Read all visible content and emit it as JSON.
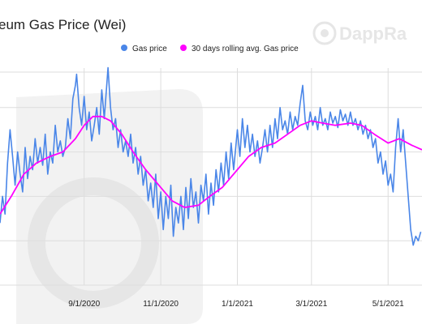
{
  "colors": {
    "gas_price": "#4a86e8",
    "rolling_avg": "#ff00ff",
    "grid": "#dddddd",
    "watermark": "#eeeeee"
  },
  "watermark": {
    "text": "DappRa",
    "icon": "dappradar-logo-icon"
  },
  "chart_data": {
    "type": "line",
    "title": "eum Gas Price (Wei)",
    "legend": {
      "placement": "top-center"
    },
    "grid": true,
    "x_tick_labels": [
      "9/1/2020",
      "11/1/2020",
      "1/1/2021",
      "3/1/2021",
      "5/1/2021"
    ],
    "x_tick_dates": [
      "2020-09-01",
      "2020-11-01",
      "2021-01-01",
      "2021-03-01",
      "2021-05-01"
    ],
    "xlim": [
      "2020-06-26",
      "2021-05-28"
    ],
    "ylim": [
      0,
      100
    ],
    "series": [
      {
        "name": "Gas price",
        "color": "#4a86e8",
        "points": [
          [
            "2020-06-26",
            28
          ],
          [
            "2020-06-28",
            40
          ],
          [
            "2020-06-30",
            32
          ],
          [
            "2020-07-02",
            55
          ],
          [
            "2020-07-04",
            70
          ],
          [
            "2020-07-06",
            58
          ],
          [
            "2020-07-08",
            45
          ],
          [
            "2020-07-10",
            60
          ],
          [
            "2020-07-12",
            50
          ],
          [
            "2020-07-14",
            42
          ],
          [
            "2020-07-16",
            62
          ],
          [
            "2020-07-18",
            48
          ],
          [
            "2020-07-20",
            58
          ],
          [
            "2020-07-22",
            52
          ],
          [
            "2020-07-24",
            66
          ],
          [
            "2020-07-26",
            55
          ],
          [
            "2020-07-28",
            62
          ],
          [
            "2020-07-30",
            54
          ],
          [
            "2020-08-01",
            68
          ],
          [
            "2020-08-03",
            50
          ],
          [
            "2020-08-05",
            60
          ],
          [
            "2020-08-07",
            55
          ],
          [
            "2020-08-09",
            72
          ],
          [
            "2020-08-11",
            60
          ],
          [
            "2020-08-13",
            65
          ],
          [
            "2020-08-15",
            58
          ],
          [
            "2020-08-17",
            62
          ],
          [
            "2020-08-19",
            75
          ],
          [
            "2020-08-21",
            66
          ],
          [
            "2020-08-23",
            84
          ],
          [
            "2020-08-25",
            90
          ],
          [
            "2020-08-26",
            95
          ],
          [
            "2020-08-28",
            80
          ],
          [
            "2020-08-30",
            72
          ],
          [
            "2020-09-01",
            85
          ],
          [
            "2020-09-03",
            70
          ],
          [
            "2020-09-05",
            78
          ],
          [
            "2020-09-07",
            65
          ],
          [
            "2020-09-09",
            72
          ],
          [
            "2020-09-11",
            80
          ],
          [
            "2020-09-13",
            68
          ],
          [
            "2020-09-15",
            88
          ],
          [
            "2020-09-17",
            75
          ],
          [
            "2020-09-19",
            90
          ],
          [
            "2020-09-20",
            98
          ],
          [
            "2020-09-22",
            80
          ],
          [
            "2020-09-24",
            70
          ],
          [
            "2020-09-26",
            75
          ],
          [
            "2020-09-28",
            62
          ],
          [
            "2020-09-30",
            70
          ],
          [
            "2020-10-02",
            60
          ],
          [
            "2020-10-04",
            65
          ],
          [
            "2020-10-06",
            58
          ],
          [
            "2020-10-08",
            68
          ],
          [
            "2020-10-10",
            55
          ],
          [
            "2020-10-12",
            62
          ],
          [
            "2020-10-14",
            50
          ],
          [
            "2020-10-16",
            58
          ],
          [
            "2020-10-18",
            45
          ],
          [
            "2020-10-20",
            52
          ],
          [
            "2020-10-22",
            38
          ],
          [
            "2020-10-24",
            46
          ],
          [
            "2020-10-26",
            35
          ],
          [
            "2020-10-28",
            50
          ],
          [
            "2020-10-30",
            30
          ],
          [
            "2020-11-01",
            42
          ],
          [
            "2020-11-03",
            25
          ],
          [
            "2020-11-05",
            40
          ],
          [
            "2020-11-07",
            30
          ],
          [
            "2020-11-09",
            45
          ],
          [
            "2020-11-11",
            22
          ],
          [
            "2020-11-13",
            35
          ],
          [
            "2020-11-15",
            28
          ],
          [
            "2020-11-17",
            40
          ],
          [
            "2020-11-19",
            25
          ],
          [
            "2020-11-21",
            44
          ],
          [
            "2020-11-23",
            30
          ],
          [
            "2020-11-25",
            48
          ],
          [
            "2020-11-27",
            35
          ],
          [
            "2020-11-29",
            42
          ],
          [
            "2020-12-01",
            28
          ],
          [
            "2020-12-03",
            45
          ],
          [
            "2020-12-05",
            38
          ],
          [
            "2020-12-07",
            50
          ],
          [
            "2020-12-09",
            32
          ],
          [
            "2020-12-11",
            46
          ],
          [
            "2020-12-13",
            36
          ],
          [
            "2020-12-15",
            52
          ],
          [
            "2020-12-17",
            42
          ],
          [
            "2020-12-19",
            55
          ],
          [
            "2020-12-21",
            45
          ],
          [
            "2020-12-23",
            60
          ],
          [
            "2020-12-25",
            48
          ],
          [
            "2020-12-27",
            64
          ],
          [
            "2020-12-29",
            52
          ],
          [
            "2021-01-01",
            70
          ],
          [
            "2021-01-03",
            58
          ],
          [
            "2021-01-05",
            75
          ],
          [
            "2021-01-07",
            62
          ],
          [
            "2021-01-09",
            72
          ],
          [
            "2021-01-11",
            60
          ],
          [
            "2021-01-13",
            68
          ],
          [
            "2021-01-15",
            58
          ],
          [
            "2021-01-17",
            65
          ],
          [
            "2021-01-19",
            55
          ],
          [
            "2021-01-21",
            62
          ],
          [
            "2021-01-23",
            70
          ],
          [
            "2021-01-25",
            60
          ],
          [
            "2021-01-27",
            72
          ],
          [
            "2021-01-29",
            62
          ],
          [
            "2021-01-31",
            75
          ],
          [
            "2021-02-02",
            66
          ],
          [
            "2021-02-04",
            80
          ],
          [
            "2021-02-06",
            70
          ],
          [
            "2021-02-08",
            74
          ],
          [
            "2021-02-10",
            68
          ],
          [
            "2021-02-12",
            78
          ],
          [
            "2021-02-14",
            70
          ],
          [
            "2021-02-16",
            76
          ],
          [
            "2021-02-18",
            72
          ],
          [
            "2021-02-20",
            82
          ],
          [
            "2021-02-22",
            90
          ],
          [
            "2021-02-24",
            74
          ],
          [
            "2021-02-26",
            70
          ],
          [
            "2021-02-28",
            78
          ],
          [
            "2021-03-02",
            72
          ],
          [
            "2021-03-04",
            76
          ],
          [
            "2021-03-06",
            70
          ],
          [
            "2021-03-08",
            80
          ],
          [
            "2021-03-10",
            72
          ],
          [
            "2021-03-12",
            75
          ],
          [
            "2021-03-14",
            70
          ],
          [
            "2021-03-16",
            78
          ],
          [
            "2021-03-18",
            73
          ],
          [
            "2021-03-20",
            76
          ],
          [
            "2021-03-22",
            71
          ],
          [
            "2021-03-24",
            79
          ],
          [
            "2021-03-26",
            74
          ],
          [
            "2021-03-28",
            77
          ],
          [
            "2021-03-30",
            72
          ],
          [
            "2021-04-01",
            78
          ],
          [
            "2021-04-03",
            72
          ],
          [
            "2021-04-05",
            75
          ],
          [
            "2021-04-07",
            70
          ],
          [
            "2021-04-09",
            74
          ],
          [
            "2021-04-11",
            68
          ],
          [
            "2021-04-13",
            72
          ],
          [
            "2021-04-15",
            66
          ],
          [
            "2021-04-17",
            70
          ],
          [
            "2021-04-19",
            62
          ],
          [
            "2021-04-21",
            66
          ],
          [
            "2021-04-23",
            55
          ],
          [
            "2021-04-25",
            60
          ],
          [
            "2021-04-27",
            50
          ],
          [
            "2021-04-29",
            56
          ],
          [
            "2021-05-01",
            45
          ],
          [
            "2021-05-03",
            50
          ],
          [
            "2021-05-05",
            42
          ],
          [
            "2021-05-07",
            62
          ],
          [
            "2021-05-09",
            75
          ],
          [
            "2021-05-11",
            60
          ],
          [
            "2021-05-13",
            70
          ],
          [
            "2021-05-15",
            55
          ],
          [
            "2021-05-17",
            40
          ],
          [
            "2021-05-19",
            25
          ],
          [
            "2021-05-21",
            18
          ],
          [
            "2021-05-23",
            22
          ],
          [
            "2021-05-25",
            20
          ],
          [
            "2021-05-27",
            24
          ]
        ]
      },
      {
        "name": "30 days rolling avg. Gas price",
        "color": "#ff00ff",
        "points": [
          [
            "2020-06-26",
            32
          ],
          [
            "2020-07-05",
            40
          ],
          [
            "2020-07-15",
            50
          ],
          [
            "2020-07-25",
            55
          ],
          [
            "2020-08-05",
            58
          ],
          [
            "2020-08-15",
            60
          ],
          [
            "2020-08-25",
            66
          ],
          [
            "2020-09-01",
            72
          ],
          [
            "2020-09-08",
            76
          ],
          [
            "2020-09-15",
            76
          ],
          [
            "2020-09-22",
            74
          ],
          [
            "2020-10-01",
            68
          ],
          [
            "2020-10-10",
            60
          ],
          [
            "2020-10-20",
            52
          ],
          [
            "2020-11-01",
            44
          ],
          [
            "2020-11-10",
            38
          ],
          [
            "2020-11-20",
            35
          ],
          [
            "2020-12-01",
            36
          ],
          [
            "2020-12-10",
            40
          ],
          [
            "2020-12-20",
            44
          ],
          [
            "2021-01-01",
            52
          ],
          [
            "2021-01-10",
            58
          ],
          [
            "2021-01-20",
            62
          ],
          [
            "2021-01-31",
            64
          ],
          [
            "2021-02-10",
            68
          ],
          [
            "2021-02-20",
            72
          ],
          [
            "2021-03-01",
            74
          ],
          [
            "2021-03-10",
            73
          ],
          [
            "2021-03-20",
            72
          ],
          [
            "2021-04-01",
            73
          ],
          [
            "2021-04-10",
            72
          ],
          [
            "2021-04-20",
            68
          ],
          [
            "2021-05-01",
            64
          ],
          [
            "2021-05-10",
            66
          ],
          [
            "2021-05-20",
            63
          ],
          [
            "2021-05-28",
            61
          ]
        ]
      }
    ]
  }
}
